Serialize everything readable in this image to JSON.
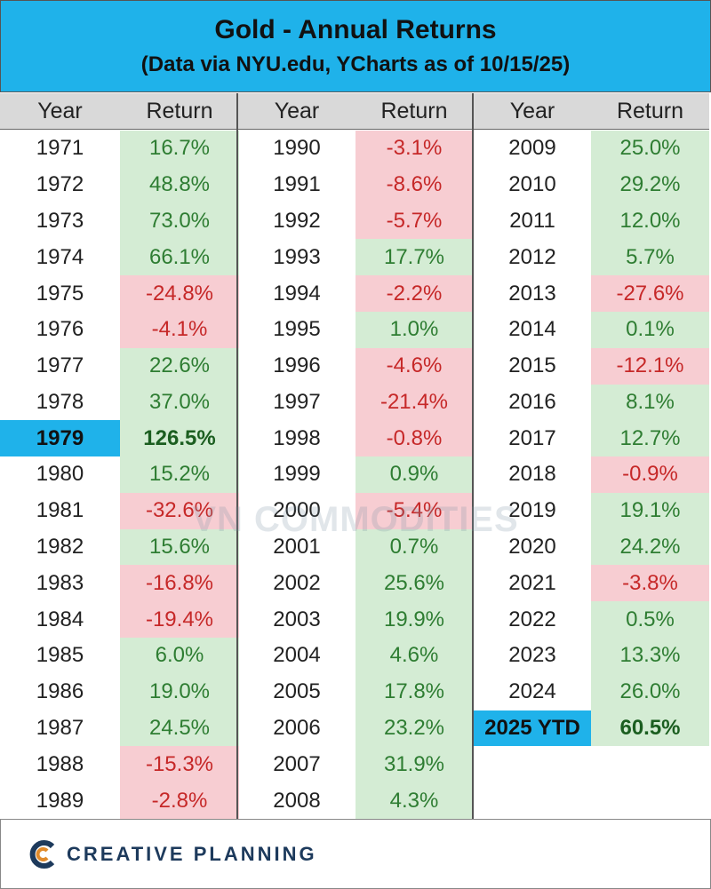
{
  "header": {
    "title": "Gold - Annual Returns",
    "subtitle": "(Data via NYU.edu, YCharts as of 10/15/25)"
  },
  "table": {
    "columns": [
      {
        "headers": [
          "Year",
          "Return"
        ],
        "highlight_row": 8,
        "rows": [
          [
            "1971",
            "16.7%"
          ],
          [
            "1972",
            "48.8%"
          ],
          [
            "1973",
            "73.0%"
          ],
          [
            "1974",
            "66.1%"
          ],
          [
            "1975",
            "-24.8%"
          ],
          [
            "1976",
            "-4.1%"
          ],
          [
            "1977",
            "22.6%"
          ],
          [
            "1978",
            "37.0%"
          ],
          [
            "1979",
            "126.5%"
          ],
          [
            "1980",
            "15.2%"
          ],
          [
            "1981",
            "-32.6%"
          ],
          [
            "1982",
            "15.6%"
          ],
          [
            "1983",
            "-16.8%"
          ],
          [
            "1984",
            "-19.4%"
          ],
          [
            "1985",
            "6.0%"
          ],
          [
            "1986",
            "19.0%"
          ],
          [
            "1987",
            "24.5%"
          ],
          [
            "1988",
            "-15.3%"
          ],
          [
            "1989",
            "-2.8%"
          ]
        ]
      },
      {
        "headers": [
          "Year",
          "Return"
        ],
        "highlight_row": null,
        "rows": [
          [
            "1990",
            "-3.1%"
          ],
          [
            "1991",
            "-8.6%"
          ],
          [
            "1992",
            "-5.7%"
          ],
          [
            "1993",
            "17.7%"
          ],
          [
            "1994",
            "-2.2%"
          ],
          [
            "1995",
            "1.0%"
          ],
          [
            "1996",
            "-4.6%"
          ],
          [
            "1997",
            "-21.4%"
          ],
          [
            "1998",
            "-0.8%"
          ],
          [
            "1999",
            "0.9%"
          ],
          [
            "2000",
            "-5.4%"
          ],
          [
            "2001",
            "0.7%"
          ],
          [
            "2002",
            "25.6%"
          ],
          [
            "2003",
            "19.9%"
          ],
          [
            "2004",
            "4.6%"
          ],
          [
            "2005",
            "17.8%"
          ],
          [
            "2006",
            "23.2%"
          ],
          [
            "2007",
            "31.9%"
          ],
          [
            "2008",
            "4.3%"
          ]
        ]
      },
      {
        "headers": [
          "Year",
          "Return"
        ],
        "highlight_row": 16,
        "rows": [
          [
            "2009",
            "25.0%"
          ],
          [
            "2010",
            "29.2%"
          ],
          [
            "2011",
            "12.0%"
          ],
          [
            "2012",
            "5.7%"
          ],
          [
            "2013",
            "-27.6%"
          ],
          [
            "2014",
            "0.1%"
          ],
          [
            "2015",
            "-12.1%"
          ],
          [
            "2016",
            "8.1%"
          ],
          [
            "2017",
            "12.7%"
          ],
          [
            "2018",
            "-0.9%"
          ],
          [
            "2019",
            "19.1%"
          ],
          [
            "2020",
            "24.2%"
          ],
          [
            "2021",
            "-3.8%"
          ],
          [
            "2022",
            "0.5%"
          ],
          [
            "2023",
            "13.3%"
          ],
          [
            "2024",
            "26.0%"
          ],
          [
            "2025 YTD",
            "60.5%"
          ]
        ]
      }
    ]
  },
  "watermark": "VN COMMODITIES",
  "footer": {
    "logo_text": "CREATIVE PLANNING"
  }
}
